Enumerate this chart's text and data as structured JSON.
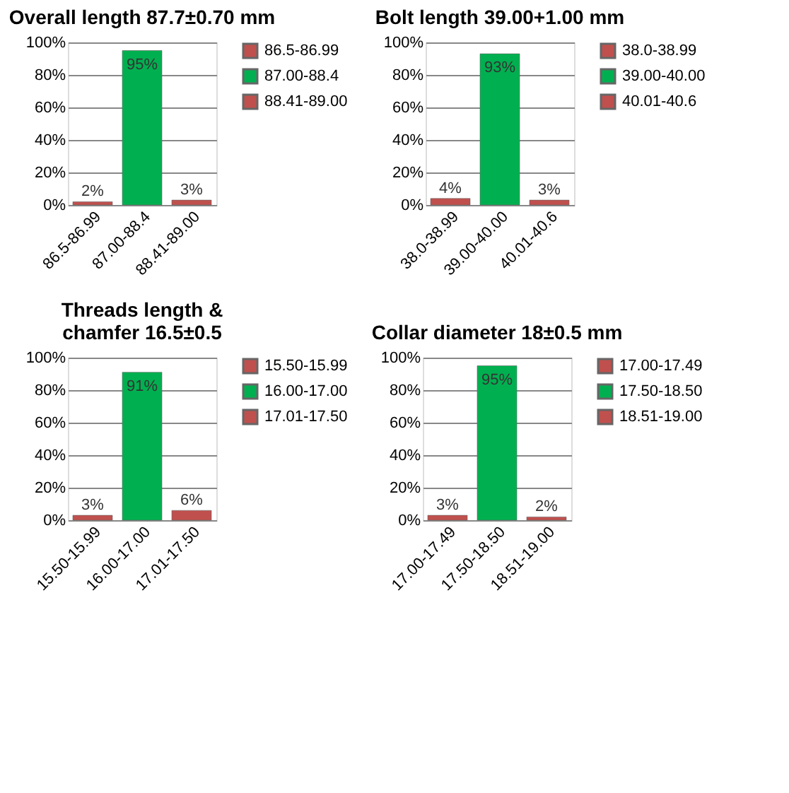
{
  "chart_data": [
    {
      "type": "bar",
      "title": "Overall length 87.7±0.70 mm",
      "categories": [
        "86.5-86.99",
        "87.00-88.4",
        "88.41-89.00"
      ],
      "series": [
        {
          "name": "86.5-86.99",
          "color": "#c0504d",
          "values": [
            2,
            null,
            null
          ],
          "value_labels": [
            "2%",
            null,
            null
          ]
        },
        {
          "name": "87.00-88.4",
          "color": "#00b050",
          "values": [
            null,
            95,
            null
          ],
          "value_labels": [
            null,
            "95%",
            null
          ]
        },
        {
          "name": "88.41-89.00",
          "color": "#c0504d",
          "values": [
            null,
            null,
            3
          ],
          "value_labels": [
            null,
            null,
            "3%"
          ]
        }
      ],
      "ylim": [
        0,
        100
      ],
      "yticks": [
        {
          "value": 0,
          "label": "0%"
        },
        {
          "value": 20,
          "label": "20%"
        },
        {
          "value": 40,
          "label": "40%"
        },
        {
          "value": 60,
          "label": "60%"
        },
        {
          "value": 80,
          "label": "80%"
        },
        {
          "value": 100,
          "label": "100%"
        }
      ],
      "grid": "y",
      "legend": "right"
    },
    {
      "type": "bar",
      "title": "Bolt  length 39.00+1.00 mm",
      "categories": [
        "38.0-38.99",
        "39.00-40.00",
        "40.01-40.6"
      ],
      "series": [
        {
          "name": "38.0-38.99",
          "color": "#c0504d",
          "values": [
            4,
            null,
            null
          ],
          "value_labels": [
            "4%",
            null,
            null
          ]
        },
        {
          "name": "39.00-40.00",
          "color": "#00b050",
          "values": [
            null,
            93,
            null
          ],
          "value_labels": [
            null,
            "93%",
            null
          ]
        },
        {
          "name": "40.01-40.6",
          "color": "#c0504d",
          "values": [
            null,
            null,
            3
          ],
          "value_labels": [
            null,
            null,
            "3%"
          ]
        }
      ],
      "ylim": [
        0,
        100
      ],
      "yticks": [
        {
          "value": 0,
          "label": "0%"
        },
        {
          "value": 20,
          "label": "20%"
        },
        {
          "value": 40,
          "label": "40%"
        },
        {
          "value": 60,
          "label": "60%"
        },
        {
          "value": 80,
          "label": "80%"
        },
        {
          "value": 100,
          "label": "100%"
        }
      ],
      "grid": "y",
      "legend": "right"
    },
    {
      "type": "bar",
      "title": "Threads length & chamfer 16.5±0.5",
      "categories": [
        "15.50-15.99",
        "16.00-17.00",
        "17.01-17.50"
      ],
      "series": [
        {
          "name": "15.50-15.99",
          "color": "#c0504d",
          "values": [
            3,
            null,
            null
          ],
          "value_labels": [
            "3%",
            null,
            null
          ]
        },
        {
          "name": "16.00-17.00",
          "color": "#00b050",
          "values": [
            null,
            91,
            null
          ],
          "value_labels": [
            null,
            "91%",
            null
          ]
        },
        {
          "name": "17.01-17.50",
          "color": "#c0504d",
          "values": [
            null,
            null,
            6
          ],
          "value_labels": [
            null,
            null,
            "6%"
          ]
        }
      ],
      "ylim": [
        0,
        100
      ],
      "yticks": [
        {
          "value": 0,
          "label": "0%"
        },
        {
          "value": 20,
          "label": "20%"
        },
        {
          "value": 40,
          "label": "40%"
        },
        {
          "value": 60,
          "label": "60%"
        },
        {
          "value": 80,
          "label": "80%"
        },
        {
          "value": 100,
          "label": "100%"
        }
      ],
      "grid": "y",
      "legend": "right"
    },
    {
      "type": "bar",
      "title": "Collar diameter 18±0.5 mm",
      "categories": [
        "17.00-17.49",
        "17.50-18.50",
        "18.51-19.00"
      ],
      "series": [
        {
          "name": "17.00-17.49",
          "color": "#c0504d",
          "values": [
            3,
            null,
            null
          ],
          "value_labels": [
            "3%",
            null,
            null
          ]
        },
        {
          "name": "17.50-18.50",
          "color": "#00b050",
          "values": [
            null,
            95,
            null
          ],
          "value_labels": [
            null,
            "95%",
            null
          ]
        },
        {
          "name": "18.51-19.00",
          "color": "#c0504d",
          "values": [
            null,
            null,
            2
          ],
          "value_labels": [
            null,
            null,
            "2%"
          ]
        }
      ],
      "ylim": [
        0,
        100
      ],
      "yticks": [
        {
          "value": 0,
          "label": "0%"
        },
        {
          "value": 20,
          "label": "20%"
        },
        {
          "value": 40,
          "label": "40%"
        },
        {
          "value": 60,
          "label": "60%"
        },
        {
          "value": 80,
          "label": "80%"
        },
        {
          "value": 100,
          "label": "100%"
        }
      ],
      "grid": "y",
      "legend": "right"
    }
  ]
}
